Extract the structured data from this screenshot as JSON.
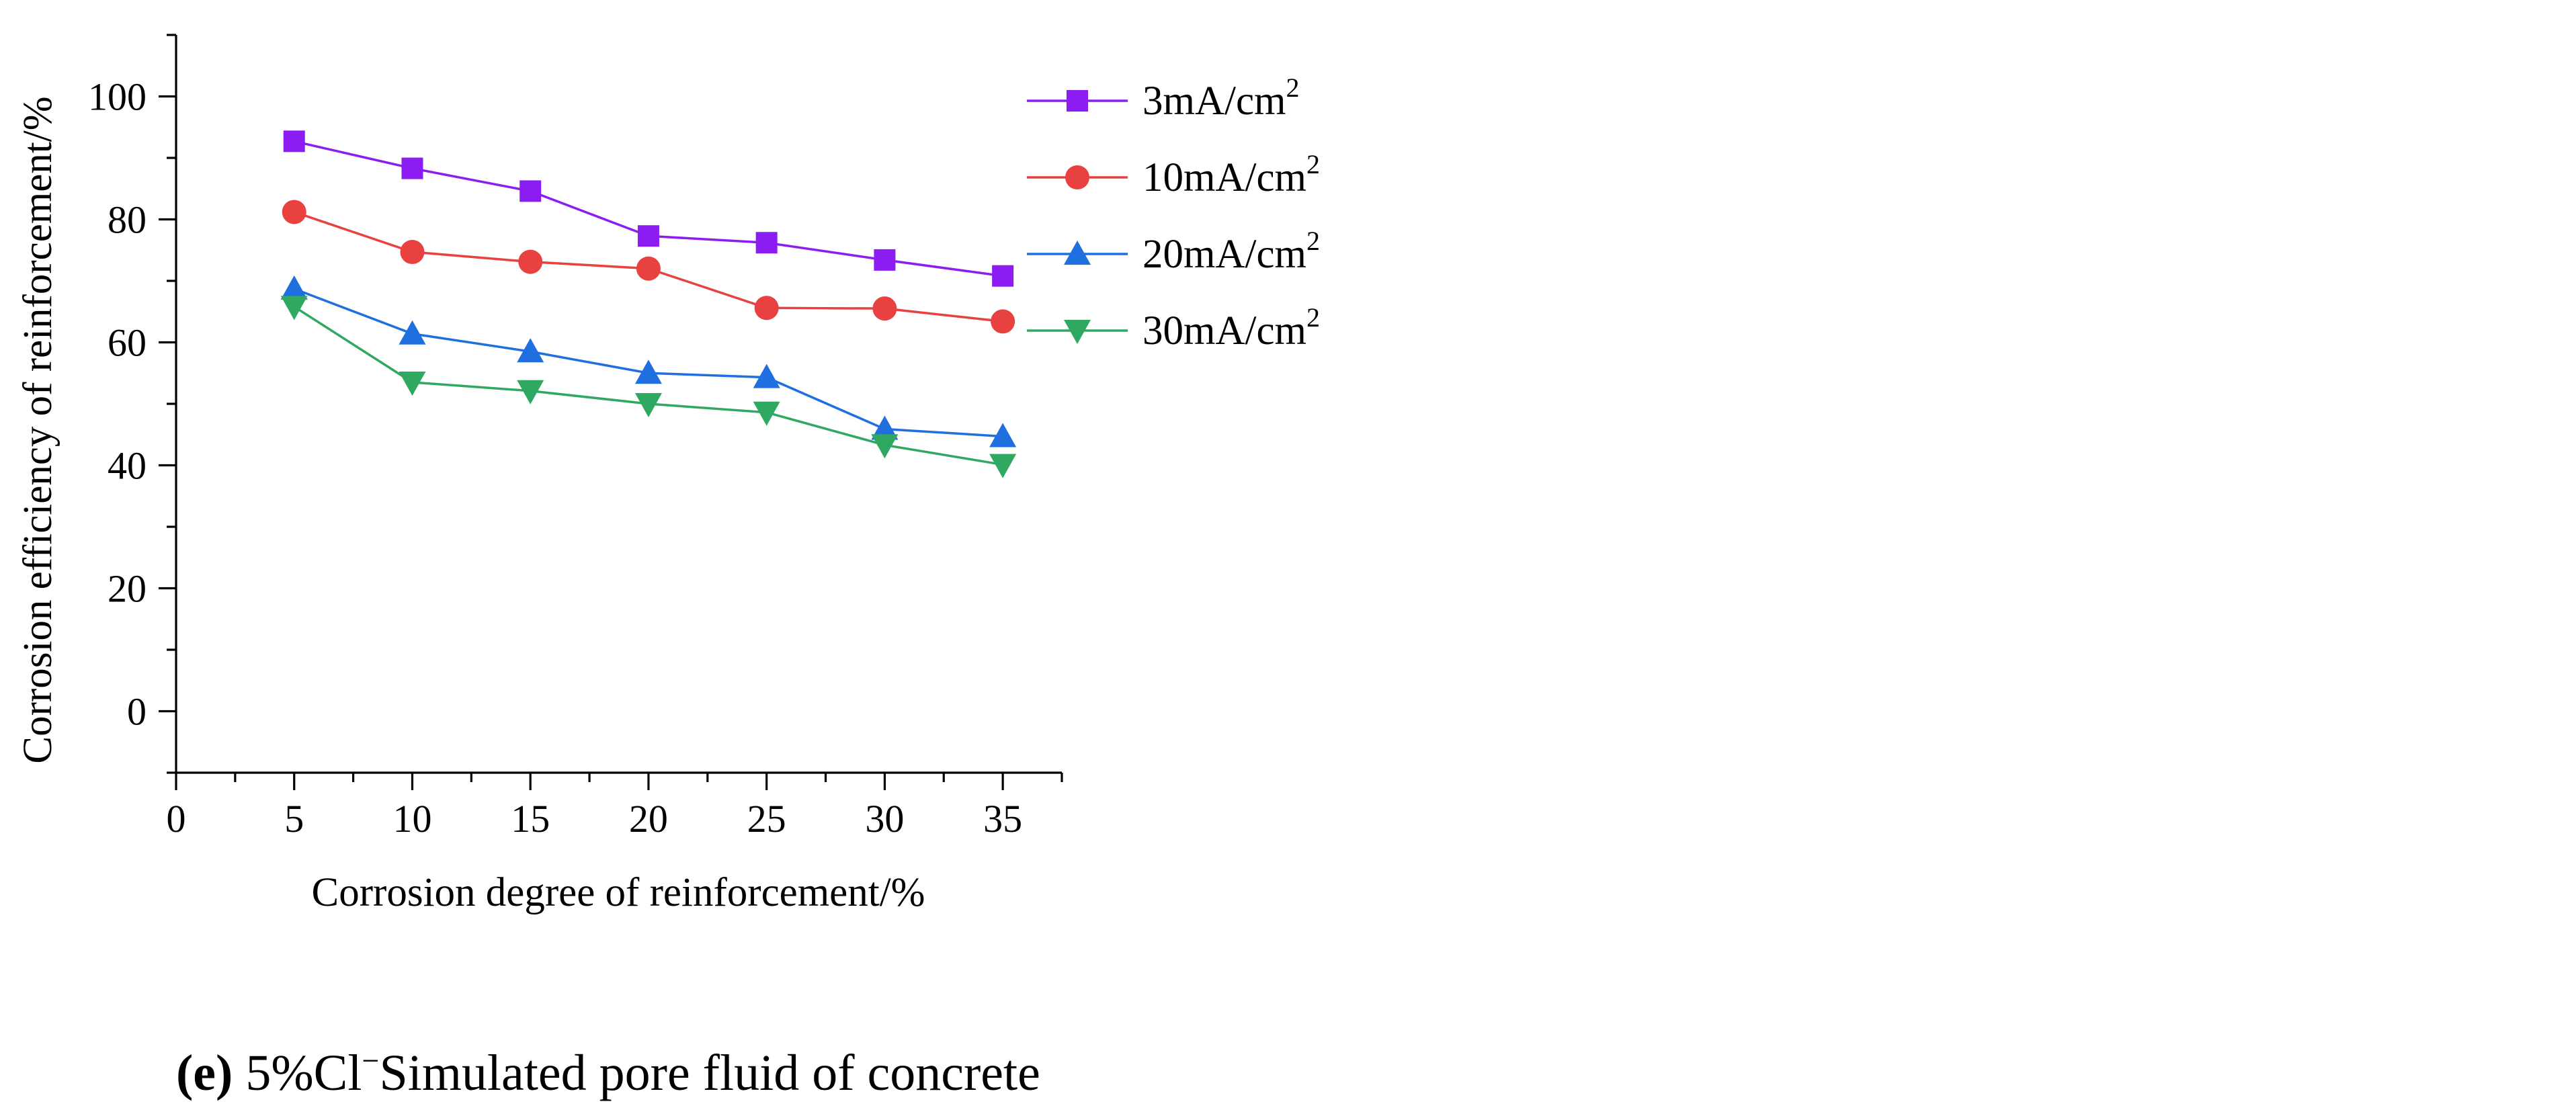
{
  "chart_data": {
    "type": "line",
    "xlabel": "Corrosion degree of reinforcement/%",
    "ylabel": "Corrosion efficiency of reinforcement/%",
    "xlim": [
      0,
      37.5
    ],
    "ylim": [
      -10,
      110
    ],
    "x_ticks": [
      "0",
      "5",
      "10",
      "15",
      "20",
      "25",
      "30",
      "35"
    ],
    "y_ticks": [
      "0",
      "20",
      "40",
      "60",
      "80",
      "100"
    ],
    "x": [
      5,
      10,
      15,
      20,
      25,
      30,
      35
    ],
    "legend_position": "top-right",
    "series": [
      {
        "name": "3mA/cm",
        "sup": "2",
        "color": "#8b1cf2",
        "marker": "square",
        "values": [
          92.7,
          88.3,
          84.6,
          77.3,
          76.2,
          73.4,
          70.8
        ]
      },
      {
        "name": "10mA/cm",
        "sup": "2",
        "color": "#e8413f",
        "marker": "circle",
        "values": [
          81.2,
          74.7,
          73.1,
          72.0,
          65.6,
          65.5,
          63.4
        ]
      },
      {
        "name": "20mA/cm",
        "sup": "2",
        "color": "#1f6fe0",
        "marker": "triangle-up",
        "values": [
          68.7,
          61.4,
          58.5,
          55.0,
          54.3,
          45.9,
          44.7
        ]
      },
      {
        "name": "30mA/cm",
        "sup": "2",
        "color": "#2fa862",
        "marker": "triangle-down",
        "values": [
          65.8,
          53.5,
          52.1,
          50.0,
          48.6,
          43.3,
          40.1
        ]
      }
    ]
  },
  "caption": {
    "label": "(e)",
    "prefix": " 5%Cl",
    "sup": "−",
    "suffix": "Simulated pore fluid of concrete"
  }
}
